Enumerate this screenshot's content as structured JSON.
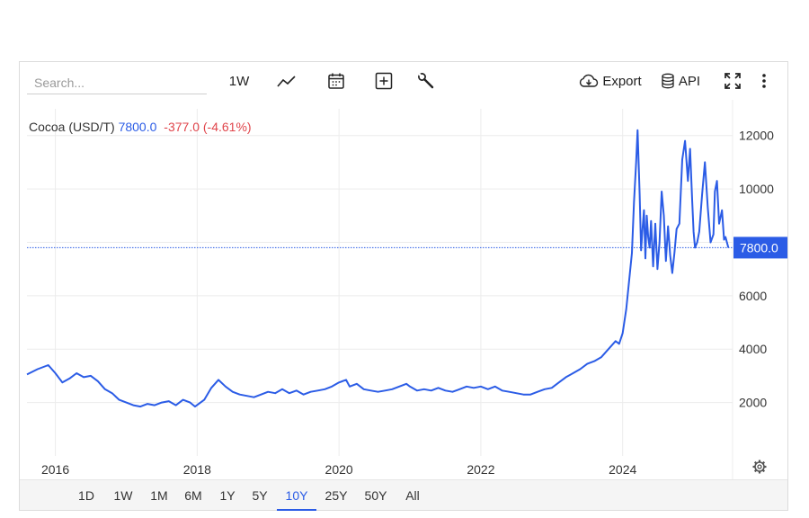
{
  "toolbar": {
    "search_placeholder": "Search...",
    "interval_label": "1W",
    "export_label": "Export",
    "api_label": "API",
    "icons": [
      "line-chart-icon",
      "calendar-icon",
      "add-icon",
      "wrench-icon",
      "cloud-download-icon",
      "database-icon",
      "fullscreen-icon",
      "more-vert-icon"
    ]
  },
  "legend": {
    "name": "Cocoa (USD/T)",
    "value": "7800.0",
    "change": "-377.0 (-4.61%)"
  },
  "price_label": "7800.0",
  "ranges": [
    "1D",
    "1W",
    "1M",
    "6M",
    "1Y",
    "5Y",
    "10Y",
    "25Y",
    "50Y",
    "All"
  ],
  "active_range": "10Y",
  "colors": {
    "line": "#2b5ce6",
    "negative": "#e0454b",
    "price_label_bg": "#2b5ce6"
  },
  "chart_data": {
    "type": "line",
    "series": [
      {
        "name": "Cocoa (USD/T)",
        "x": [
          2015.6,
          2015.75,
          2015.9,
          2016.0,
          2016.1,
          2016.2,
          2016.3,
          2016.4,
          2016.5,
          2016.6,
          2016.7,
          2016.8,
          2016.9,
          2017.0,
          2017.1,
          2017.2,
          2017.3,
          2017.4,
          2017.5,
          2017.6,
          2017.7,
          2017.8,
          2017.9,
          2017.97,
          2018.1,
          2018.2,
          2018.3,
          2018.4,
          2018.5,
          2018.6,
          2018.7,
          2018.8,
          2018.9,
          2019.0,
          2019.1,
          2019.2,
          2019.3,
          2019.4,
          2019.5,
          2019.6,
          2019.7,
          2019.8,
          2019.9,
          2020.0,
          2020.1,
          2020.15,
          2020.25,
          2020.35,
          2020.45,
          2020.55,
          2020.65,
          2020.75,
          2020.85,
          2020.95,
          2021.0,
          2021.1,
          2021.2,
          2021.3,
          2021.4,
          2021.5,
          2021.6,
          2021.7,
          2021.8,
          2021.9,
          2022.0,
          2022.1,
          2022.2,
          2022.3,
          2022.4,
          2022.5,
          2022.6,
          2022.7,
          2022.8,
          2022.9,
          2023.0,
          2023.1,
          2023.2,
          2023.3,
          2023.4,
          2023.5,
          2023.6,
          2023.7,
          2023.8,
          2023.9,
          2023.95,
          2024.0,
          2024.05,
          2024.1,
          2024.13,
          2024.16,
          2024.19,
          2024.21,
          2024.24,
          2024.26,
          2024.28,
          2024.3,
          2024.32,
          2024.34,
          2024.36,
          2024.38,
          2024.4,
          2024.43,
          2024.46,
          2024.49,
          2024.52,
          2024.55,
          2024.58,
          2024.61,
          2024.64,
          2024.67,
          2024.7,
          2024.73,
          2024.76,
          2024.8,
          2024.84,
          2024.88,
          2024.92,
          2024.95,
          2024.98,
          2025.0,
          2025.02,
          2025.05,
          2025.08,
          2025.12,
          2025.16,
          2025.2,
          2025.24,
          2025.28,
          2025.3,
          2025.33,
          2025.36,
          2025.4,
          2025.43,
          2025.45,
          2025.47,
          2025.49
        ],
        "values": [
          3050,
          3250,
          3400,
          3100,
          2750,
          2900,
          3100,
          2950,
          3000,
          2800,
          2500,
          2350,
          2100,
          2000,
          1900,
          1850,
          1950,
          1900,
          2000,
          2050,
          1900,
          2100,
          2000,
          1850,
          2100,
          2550,
          2850,
          2600,
          2400,
          2300,
          2250,
          2200,
          2300,
          2400,
          2350,
          2500,
          2350,
          2450,
          2300,
          2400,
          2450,
          2500,
          2600,
          2750,
          2850,
          2600,
          2700,
          2500,
          2450,
          2400,
          2450,
          2500,
          2600,
          2700,
          2600,
          2450,
          2500,
          2450,
          2550,
          2450,
          2400,
          2500,
          2600,
          2550,
          2600,
          2500,
          2600,
          2450,
          2400,
          2350,
          2300,
          2300,
          2400,
          2500,
          2550,
          2750,
          2950,
          3100,
          3250,
          3450,
          3550,
          3700,
          4000,
          4300,
          4200,
          4600,
          5500,
          6800,
          7600,
          9500,
          11000,
          12200,
          9800,
          7700,
          8500,
          9200,
          7400,
          9000,
          8200,
          7800,
          8800,
          7100,
          8700,
          7000,
          8000,
          9900,
          9000,
          7300,
          8600,
          7500,
          6850,
          7600,
          8500,
          8700,
          11100,
          11800,
          10300,
          11500,
          9600,
          8400,
          7800,
          8000,
          8400,
          9800,
          11000,
          9300,
          8000,
          8300,
          9900,
          10300,
          8700,
          9200,
          8100,
          8200,
          8000,
          7800
        ],
        "color": "#2b5ce6"
      }
    ],
    "x_ticks": [
      "2016",
      "2018",
      "2020",
      "2022",
      "2024"
    ],
    "y_ticks": [
      "2000",
      "4000",
      "6000",
      "8000",
      "10000",
      "12000"
    ],
    "ylim": [
      0,
      13000
    ],
    "xlim": [
      2015.6,
      2025.55
    ],
    "current_value": 7800,
    "grid": true,
    "legend_position": "top-left"
  }
}
